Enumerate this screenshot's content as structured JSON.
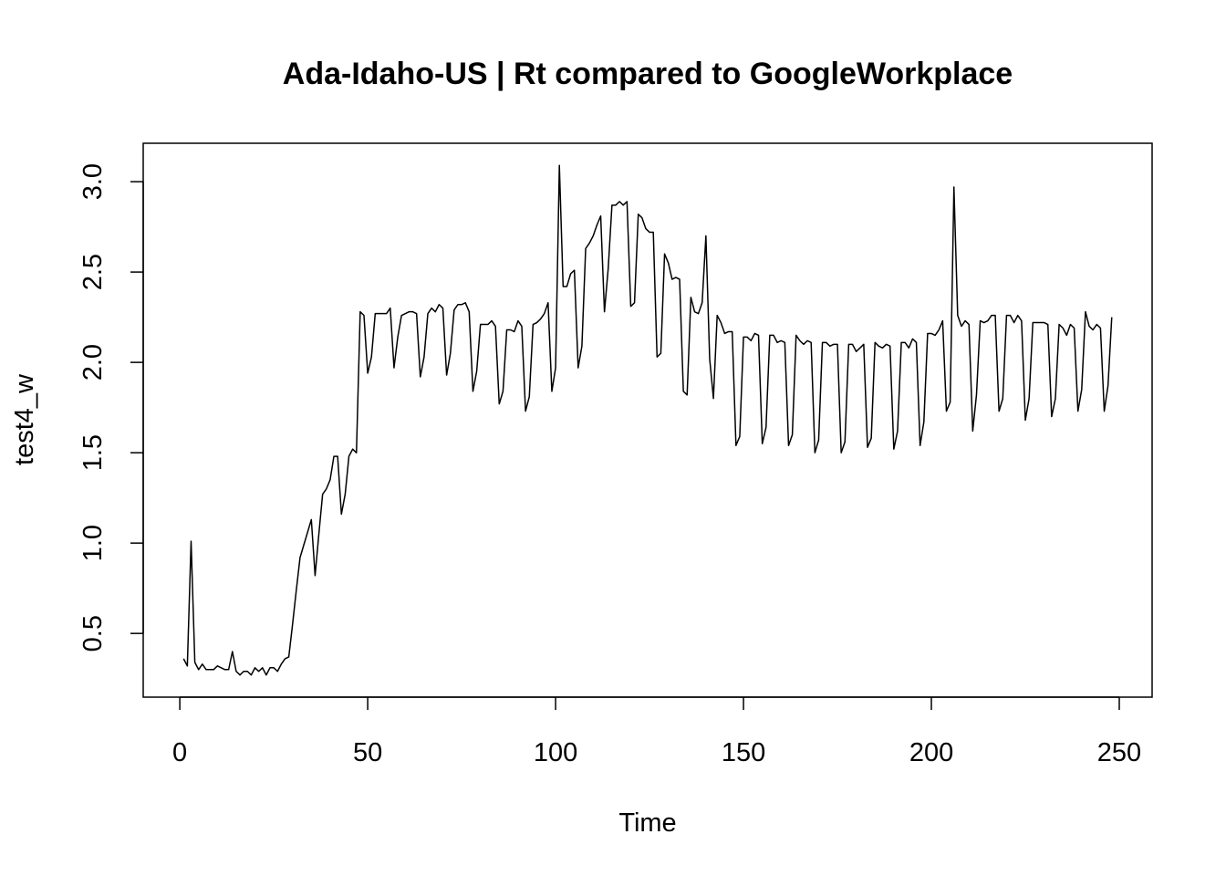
{
  "chart_data": {
    "type": "line",
    "title": "Ada-Idaho-US | Rt compared to GoogleWorkplace",
    "xlabel": "Time",
    "ylabel": "test4_w",
    "xlim": [
      1,
      248
    ],
    "ylim": [
      0.27,
      3.09
    ],
    "x_ticks": [
      0,
      50,
      100,
      150,
      200,
      250
    ],
    "y_ticks": [
      0.5,
      1.0,
      1.5,
      2.0,
      2.5,
      3.0
    ],
    "x_tick_labels": [
      "0",
      "50",
      "100",
      "150",
      "200",
      "250"
    ],
    "y_tick_labels": [
      "0.5",
      "1.0",
      "1.5",
      "2.0",
      "2.5",
      "3.0"
    ],
    "grid": false,
    "legend": "none",
    "line_color": "#000000",
    "series": [
      {
        "values": [
          0.36,
          0.32,
          1.01,
          0.34,
          0.3,
          0.33,
          0.3,
          0.3,
          0.3,
          0.32,
          0.31,
          0.3,
          0.3,
          0.4,
          0.29,
          0.27,
          0.29,
          0.29,
          0.27,
          0.31,
          0.29,
          0.31,
          0.27,
          0.31,
          0.31,
          0.29,
          0.33,
          0.36,
          0.37,
          0.55,
          0.74,
          0.92,
          0.99,
          1.06,
          1.13,
          0.82,
          1.05,
          1.27,
          1.3,
          1.35,
          1.48,
          1.48,
          1.16,
          1.27,
          1.48,
          1.52,
          1.5,
          2.28,
          2.26,
          1.94,
          2.03,
          2.27,
          2.27,
          2.27,
          2.27,
          2.3,
          1.97,
          2.14,
          2.26,
          2.27,
          2.28,
          2.28,
          2.27,
          1.92,
          2.03,
          2.27,
          2.3,
          2.28,
          2.32,
          2.3,
          1.93,
          2.05,
          2.29,
          2.32,
          2.32,
          2.33,
          2.28,
          1.84,
          1.95,
          2.21,
          2.21,
          2.21,
          2.23,
          2.2,
          1.77,
          1.84,
          2.18,
          2.18,
          2.17,
          2.23,
          2.2,
          1.73,
          1.81,
          2.21,
          2.22,
          2.24,
          2.27,
          2.33,
          1.84,
          1.97,
          3.09,
          2.42,
          2.42,
          2.49,
          2.51,
          1.97,
          2.09,
          2.63,
          2.66,
          2.7,
          2.76,
          2.81,
          2.28,
          2.52,
          2.87,
          2.87,
          2.89,
          2.87,
          2.89,
          2.31,
          2.33,
          2.82,
          2.8,
          2.74,
          2.72,
          2.72,
          2.03,
          2.05,
          2.6,
          2.55,
          2.46,
          2.47,
          2.46,
          1.84,
          1.82,
          2.36,
          2.28,
          2.27,
          2.33,
          2.7,
          2.02,
          1.8,
          2.26,
          2.22,
          2.16,
          2.17,
          2.17,
          1.54,
          1.59,
          2.14,
          2.14,
          2.12,
          2.16,
          2.15,
          1.55,
          1.64,
          2.15,
          2.15,
          2.11,
          2.12,
          2.11,
          1.54,
          1.6,
          2.15,
          2.12,
          2.1,
          2.12,
          2.11,
          1.5,
          1.57,
          2.11,
          2.11,
          2.09,
          2.1,
          2.1,
          1.5,
          1.56,
          2.1,
          2.1,
          2.06,
          2.08,
          2.1,
          1.53,
          1.58,
          2.11,
          2.09,
          2.08,
          2.1,
          2.09,
          1.52,
          1.62,
          2.11,
          2.11,
          2.08,
          2.13,
          2.11,
          1.54,
          1.67,
          2.16,
          2.16,
          2.15,
          2.18,
          2.23,
          1.73,
          1.78,
          2.97,
          2.26,
          2.2,
          2.23,
          2.21,
          1.62,
          1.82,
          2.23,
          2.22,
          2.23,
          2.26,
          2.26,
          1.73,
          1.8,
          2.26,
          2.26,
          2.22,
          2.26,
          2.23,
          1.68,
          1.8,
          2.22,
          2.22,
          2.22,
          2.22,
          2.21,
          1.7,
          1.8,
          2.21,
          2.19,
          2.15,
          2.21,
          2.19,
          1.73,
          1.85,
          2.28,
          2.2,
          2.18,
          2.21,
          2.19,
          1.73,
          1.87,
          2.25
        ]
      }
    ]
  }
}
